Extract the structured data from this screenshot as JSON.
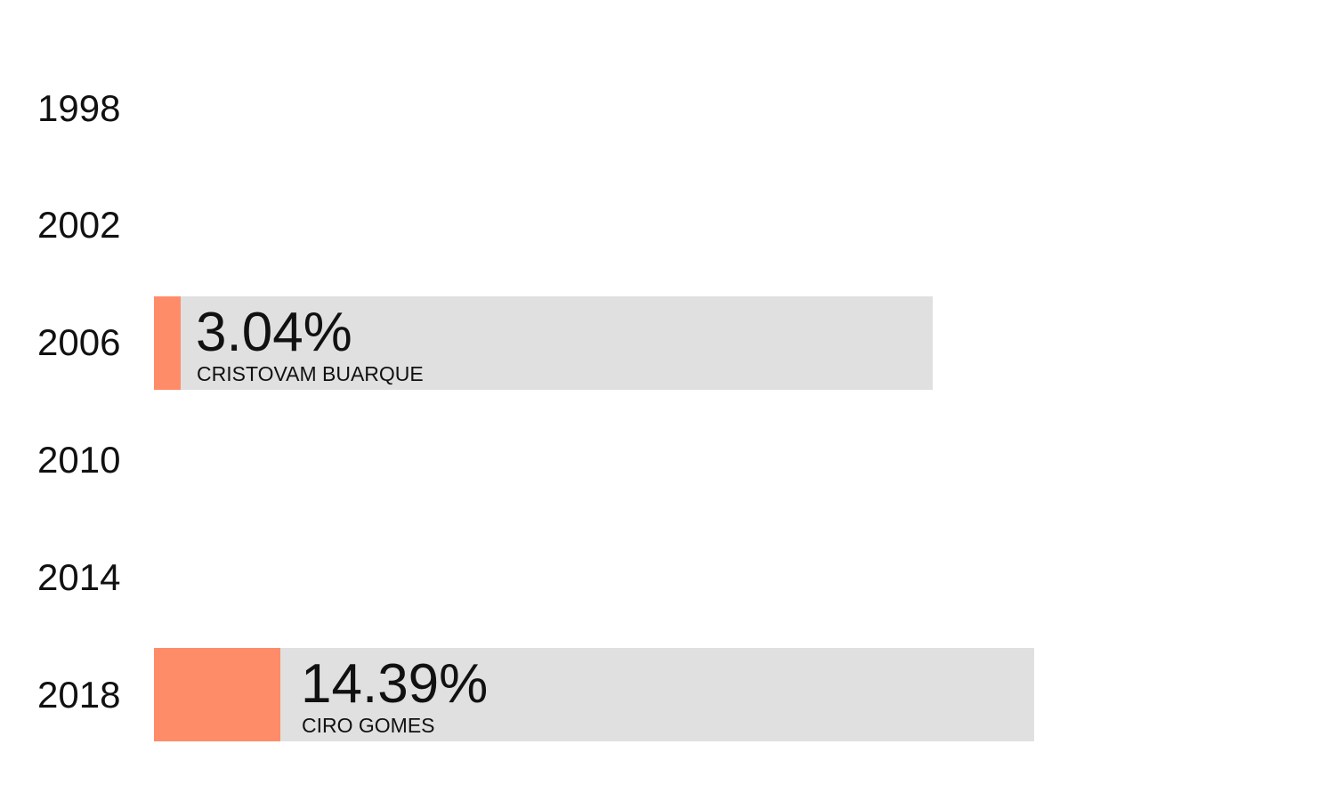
{
  "chart_data": {
    "type": "bar",
    "orientation": "horizontal",
    "categories": [
      "1998",
      "2002",
      "2006",
      "2010",
      "2014",
      "2018"
    ],
    "bars": [
      {
        "year": "1998",
        "value": null,
        "value_label": "",
        "candidate": ""
      },
      {
        "year": "2002",
        "value": null,
        "value_label": "",
        "candidate": ""
      },
      {
        "year": "2006",
        "value": 3.04,
        "value_label": "3.04%",
        "candidate": "CRISTOVAM BUARQUE"
      },
      {
        "year": "2010",
        "value": null,
        "value_label": "",
        "candidate": ""
      },
      {
        "year": "2014",
        "value": null,
        "value_label": "",
        "candidate": ""
      },
      {
        "year": "2018",
        "value": 14.39,
        "value_label": "14.39%",
        "candidate": "CIRO GOMES"
      }
    ],
    "title": "",
    "xlabel": "",
    "ylabel": "",
    "grid": false,
    "legend": "none",
    "colors": {
      "fill": "#ff8c69",
      "background_bar": "#e0e0e0",
      "text": "#111111"
    }
  }
}
